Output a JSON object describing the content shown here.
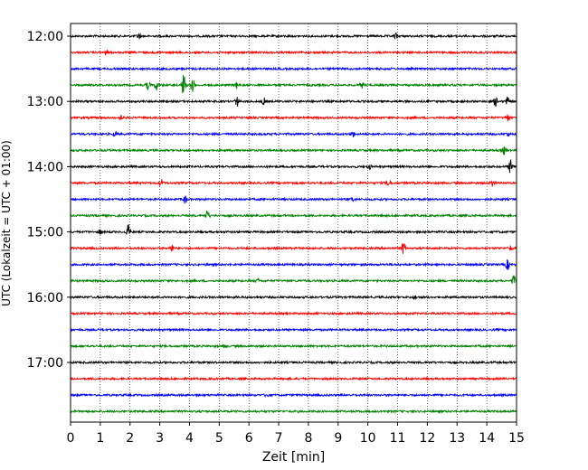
{
  "chart_data": {
    "type": "line",
    "title": "",
    "xlabel": "Zeit  [min]",
    "ylabel": "UTC (Lokalzeit = UTC + 01:00)",
    "xlim": [
      0,
      15
    ],
    "x_ticks": [
      "0",
      "1",
      "2",
      "3",
      "4",
      "5",
      "6",
      "7",
      "8",
      "9",
      "10",
      "11",
      "12",
      "13",
      "14",
      "15"
    ],
    "grid": "vertical dotted",
    "legend": "none",
    "row_interval_minutes": 15,
    "start_time": "12:00",
    "end_time": "17:45",
    "y_ticks": [
      {
        "row": 0,
        "label": "12:00"
      },
      {
        "row": 4,
        "label": "13:00"
      },
      {
        "row": 8,
        "label": "14:00"
      },
      {
        "row": 12,
        "label": "15:00"
      },
      {
        "row": 16,
        "label": "16:00"
      },
      {
        "row": 20,
        "label": "17:00"
      }
    ],
    "color_cycle": [
      "#000000",
      "#ff0000",
      "#0000ff",
      "#008000"
    ],
    "rows": [
      {
        "time": "12:00",
        "color": "#000000",
        "events": [
          {
            "t": 2.3,
            "amp": 0.35
          },
          {
            "t": 10.95,
            "amp": 0.3
          }
        ]
      },
      {
        "time": "12:15",
        "color": "#ff0000",
        "events": [
          {
            "t": 1.2,
            "amp": 0.25
          }
        ]
      },
      {
        "time": "12:30",
        "color": "#0000ff",
        "events": []
      },
      {
        "time": "12:45",
        "color": "#008000",
        "events": [
          {
            "t": 2.6,
            "amp": 0.5
          },
          {
            "t": 2.9,
            "amp": 0.6
          },
          {
            "t": 3.8,
            "amp": 1.4
          },
          {
            "t": 4.1,
            "amp": 0.9
          },
          {
            "t": 5.6,
            "amp": 0.4
          },
          {
            "t": 9.8,
            "amp": 0.35
          }
        ]
      },
      {
        "time": "13:00",
        "color": "#000000",
        "events": [
          {
            "t": 5.6,
            "amp": 0.6
          },
          {
            "t": 6.5,
            "amp": 0.4
          },
          {
            "t": 14.3,
            "amp": 0.55
          },
          {
            "t": 14.7,
            "amp": 0.5
          }
        ]
      },
      {
        "time": "13:15",
        "color": "#ff0000",
        "events": [
          {
            "t": 1.7,
            "amp": 0.25
          },
          {
            "t": 14.7,
            "amp": 0.4
          }
        ]
      },
      {
        "time": "13:30",
        "color": "#0000ff",
        "events": [
          {
            "t": 1.5,
            "amp": 0.25
          },
          {
            "t": 9.5,
            "amp": 0.3
          },
          {
            "t": 14.7,
            "amp": 0.25
          }
        ]
      },
      {
        "time": "13:45",
        "color": "#008000",
        "events": [
          {
            "t": 14.6,
            "amp": 0.6
          }
        ]
      },
      {
        "time": "14:00",
        "color": "#000000",
        "events": [
          {
            "t": 10.05,
            "amp": 0.3
          },
          {
            "t": 14.8,
            "amp": 0.9
          }
        ]
      },
      {
        "time": "14:15",
        "color": "#ff0000",
        "events": [
          {
            "t": 3.05,
            "amp": 0.5
          },
          {
            "t": 10.7,
            "amp": 0.6
          },
          {
            "t": 14.2,
            "amp": 0.45
          }
        ]
      },
      {
        "time": "14:30",
        "color": "#0000ff",
        "events": [
          {
            "t": 3.85,
            "amp": 0.5
          },
          {
            "t": 9.5,
            "amp": 0.25
          }
        ]
      },
      {
        "time": "14:45",
        "color": "#008000",
        "events": [
          {
            "t": 4.6,
            "amp": 0.6
          }
        ]
      },
      {
        "time": "15:00",
        "color": "#000000",
        "events": [
          {
            "t": 1.95,
            "amp": 0.9
          },
          {
            "t": 1.0,
            "amp": 0.3
          }
        ]
      },
      {
        "time": "15:15",
        "color": "#ff0000",
        "events": [
          {
            "t": 3.4,
            "amp": 0.5
          },
          {
            "t": 11.2,
            "amp": 0.8
          },
          {
            "t": 14.8,
            "amp": 0.3
          }
        ]
      },
      {
        "time": "15:30",
        "color": "#0000ff",
        "events": [
          {
            "t": 14.7,
            "amp": 0.6
          }
        ]
      },
      {
        "time": "15:45",
        "color": "#008000",
        "events": [
          {
            "t": 14.9,
            "amp": 0.6
          },
          {
            "t": 6.3,
            "amp": 0.2
          }
        ]
      },
      {
        "time": "16:00",
        "color": "#000000",
        "events": [
          {
            "t": 11.6,
            "amp": 0.2
          }
        ]
      },
      {
        "time": "16:15",
        "color": "#ff0000",
        "events": []
      },
      {
        "time": "16:30",
        "color": "#0000ff",
        "events": []
      },
      {
        "time": "16:45",
        "color": "#008000",
        "events": [
          {
            "t": 5.2,
            "amp": 0.2
          }
        ]
      },
      {
        "time": "17:00",
        "color": "#000000",
        "events": []
      },
      {
        "time": "17:15",
        "color": "#ff0000",
        "events": []
      },
      {
        "time": "17:30",
        "color": "#0000ff",
        "events": [
          {
            "t": 6.6,
            "amp": 0.25
          }
        ]
      },
      {
        "time": "17:45",
        "color": "#008000",
        "events": []
      }
    ]
  }
}
